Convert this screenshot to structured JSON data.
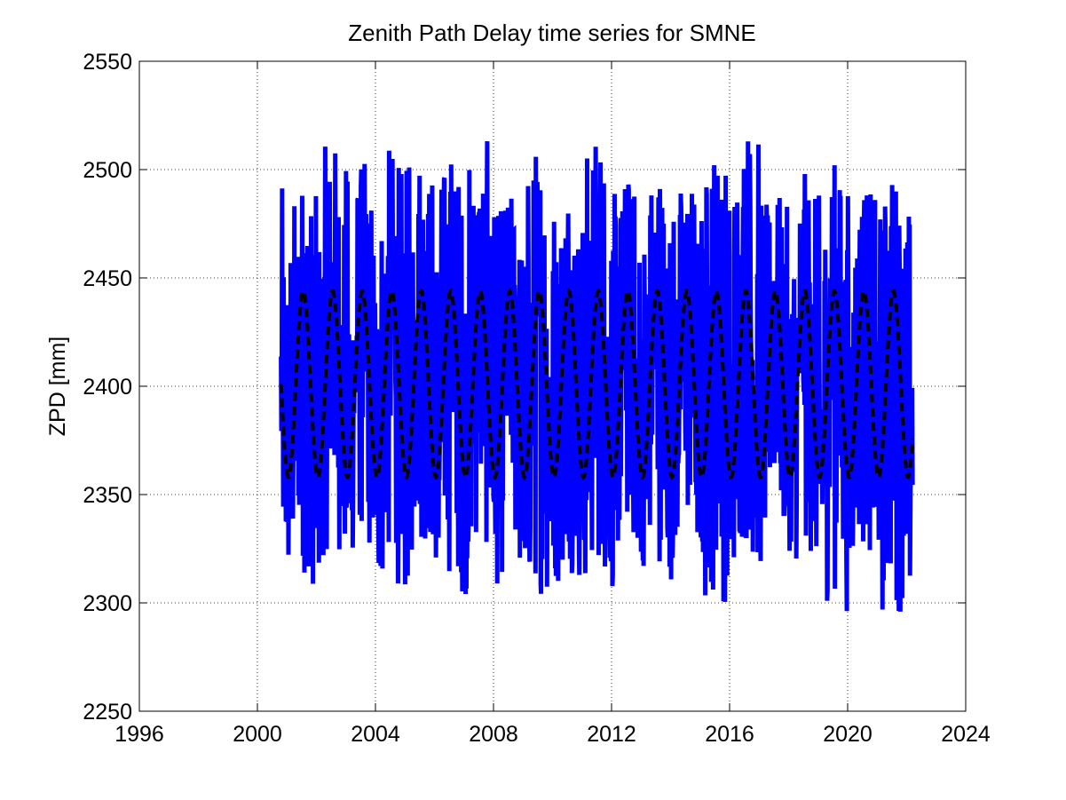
{
  "chart_data": {
    "type": "line",
    "title": "Zenith Path Delay time series for SMNE",
    "xlabel": "",
    "ylabel": "ZPD [mm]",
    "xlim": [
      1996,
      2024
    ],
    "ylim": [
      2250,
      2550
    ],
    "x_ticks": [
      1996,
      2000,
      2004,
      2008,
      2012,
      2016,
      2020,
      2024
    ],
    "y_ticks": [
      2250,
      2300,
      2350,
      2400,
      2450,
      2500,
      2550
    ],
    "x_tick_labels": [
      "1996",
      "2000",
      "2004",
      "2008",
      "2012",
      "2016",
      "2020",
      "2024"
    ],
    "y_tick_labels": [
      "2250",
      "2300",
      "2350",
      "2400",
      "2450",
      "2500",
      "2550"
    ],
    "grid": true,
    "series": [
      {
        "style": "solid",
        "color": "#0000ff",
        "x_range": [
          2000.8,
          2022.2
        ],
        "seasonal_peak_envelope": [
          {
            "year": 2001.6,
            "max": 2504,
            "min": 2297
          },
          {
            "year": 2002.6,
            "max": 2524,
            "min": 2313
          },
          {
            "year": 2003.6,
            "max": 2512,
            "min": 2312
          },
          {
            "year": 2004.6,
            "max": 2519,
            "min": 2296
          },
          {
            "year": 2005.6,
            "max": 2526,
            "min": 2312
          },
          {
            "year": 2006.6,
            "max": 2519,
            "min": 2297
          },
          {
            "year": 2007.6,
            "max": 2526,
            "min": 2312
          },
          {
            "year": 2008.6,
            "max": 2495,
            "min": 2301
          },
          {
            "year": 2009.6,
            "max": 2523,
            "min": 2288
          },
          {
            "year": 2010.6,
            "max": 2506,
            "min": 2300
          },
          {
            "year": 2011.6,
            "max": 2532,
            "min": 2299
          },
          {
            "year": 2012.6,
            "max": 2505,
            "min": 2311
          },
          {
            "year": 2013.6,
            "max": 2514,
            "min": 2305
          },
          {
            "year": 2014.6,
            "max": 2507,
            "min": 2313
          },
          {
            "year": 2015.6,
            "max": 2524,
            "min": 2288
          },
          {
            "year": 2016.6,
            "max": 2539,
            "min": 2310
          },
          {
            "year": 2017.6,
            "max": 2496,
            "min": 2320
          },
          {
            "year": 2018.6,
            "max": 2505,
            "min": 2308
          },
          {
            "year": 2019.6,
            "max": 2512,
            "min": 2288
          },
          {
            "year": 2020.6,
            "max": 2501,
            "min": 2310
          },
          {
            "year": 2021.6,
            "max": 2506,
            "min": 2282
          }
        ]
      },
      {
        "style": "dashed",
        "color": "#000000",
        "model": "annual sinusoid",
        "x_range": [
          2000.8,
          2022.2
        ],
        "mean": 2401,
        "amplitude": 43,
        "period_years": 1,
        "peak_phase_year_fraction": 0.55
      }
    ]
  }
}
